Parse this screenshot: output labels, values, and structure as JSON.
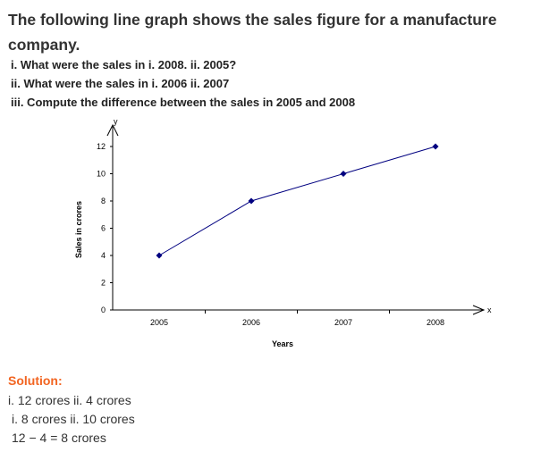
{
  "question": {
    "title": "The following line graph shows the sales figure for a manufacture company.",
    "items": [
      "i. What were the sales in i. 2008. ii. 2005?",
      "ii. What were the sales in i. 2006 ii. 2007",
      "iii. Compute the difference between the sales in 2005 and 2008"
    ]
  },
  "chart_data": {
    "type": "line",
    "categories": [
      "2005",
      "2006",
      "2007",
      "2008"
    ],
    "values": [
      4,
      8,
      10,
      12
    ],
    "xlabel": "Years",
    "ylabel": "Sales in crores",
    "x_axis_letter": "x",
    "y_axis_letter": "y",
    "ylim": [
      0,
      12
    ],
    "yticks": [
      0,
      2,
      4,
      6,
      8,
      10,
      12
    ],
    "grid": false,
    "line_color": "#000080"
  },
  "solution": {
    "heading": "Solution:",
    "lines": [
      "i. 12 crores ii. 4 crores",
      "i. 8 crores ii. 10 crores",
      "12 − 4 = 8 crores"
    ]
  }
}
